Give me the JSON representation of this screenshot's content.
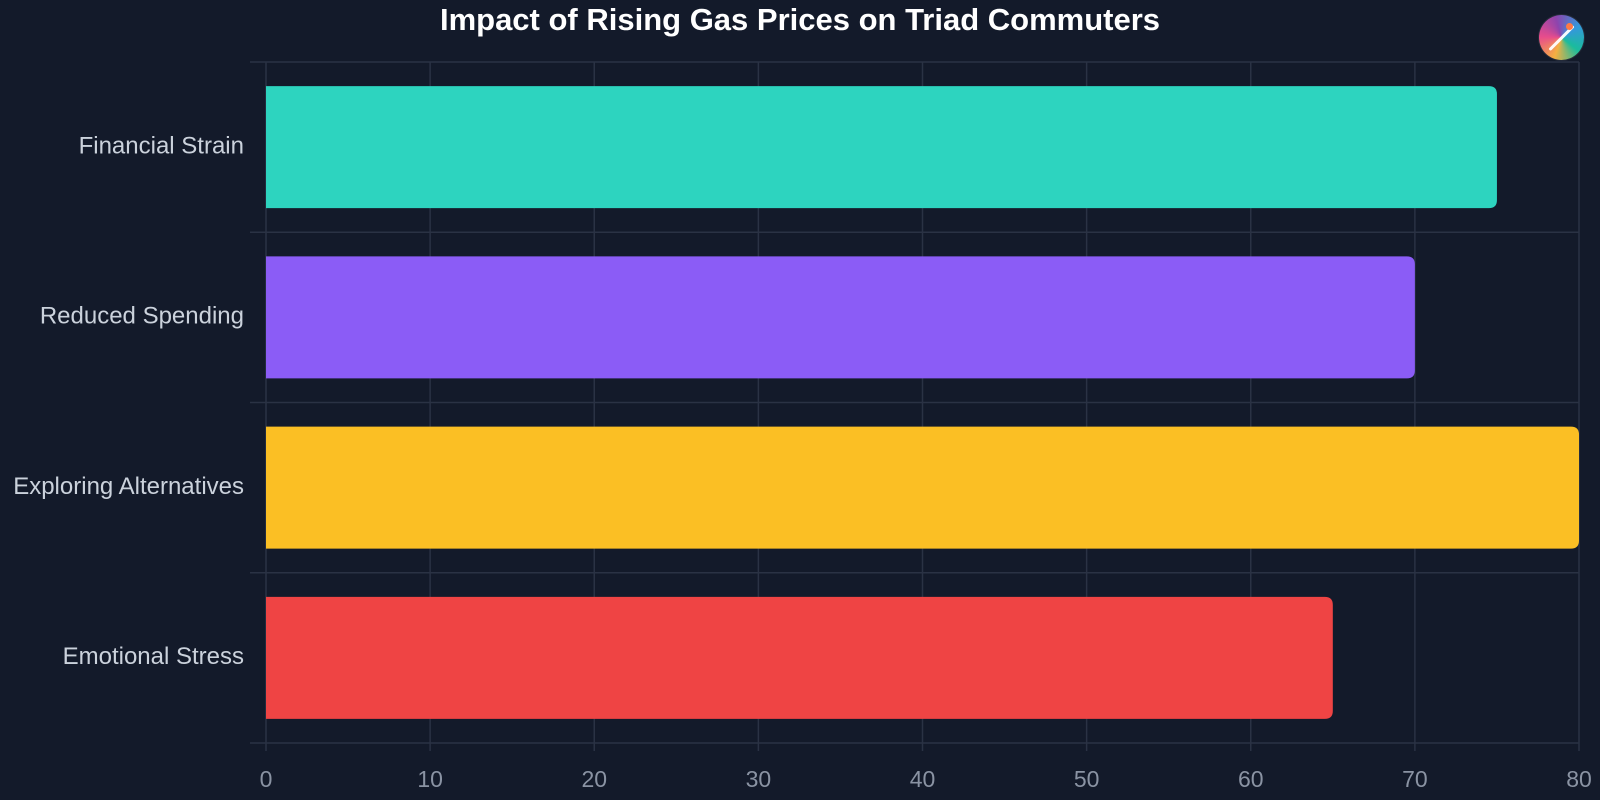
{
  "chart_data": {
    "type": "bar",
    "orientation": "horizontal",
    "title": "Impact of Rising Gas Prices on Triad Commuters",
    "xlabel": "",
    "ylabel": "",
    "categories": [
      "Financial Strain",
      "Reduced Spending",
      "Exploring Alternatives",
      "Emotional Stress"
    ],
    "values": [
      75,
      70,
      80,
      65
    ],
    "colors": [
      "#2dd4bf",
      "#8b5cf6",
      "#fbbf24",
      "#ef4444"
    ],
    "xlim": [
      0,
      80
    ],
    "x_ticks": [
      0,
      10,
      20,
      30,
      40,
      50,
      60,
      70,
      80
    ],
    "grid": true,
    "legend": "none"
  },
  "theme": {
    "background": "#131a2a",
    "grid_color": "#2a3244",
    "label_color": "#cbd2dc",
    "tick_color": "#8a93a3",
    "title_color": "#ffffff"
  },
  "logo": {
    "icon": "magic-wand-icon"
  }
}
